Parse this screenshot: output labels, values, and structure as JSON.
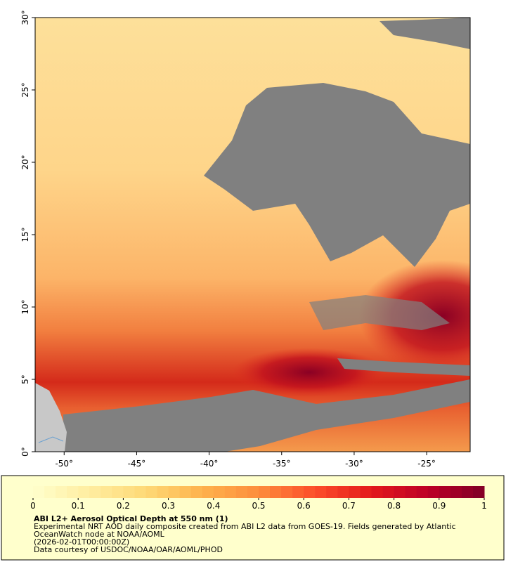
{
  "map": {
    "lonlim": [
      -52,
      -22
    ],
    "latlim": [
      0,
      30
    ],
    "xticks": [
      {
        "value": -50,
        "label": "-50°"
      },
      {
        "value": -45,
        "label": "-45°"
      },
      {
        "value": -40,
        "label": "-40°"
      },
      {
        "value": -35,
        "label": "-35°"
      },
      {
        "value": -30,
        "label": "-30°"
      },
      {
        "value": -25,
        "label": "-25°"
      }
    ],
    "yticks": [
      {
        "value": 0,
        "label": "0°"
      },
      {
        "value": 5,
        "label": "5°"
      },
      {
        "value": 10,
        "label": "10°"
      },
      {
        "value": 15,
        "label": "15°"
      },
      {
        "value": 20,
        "label": "20°"
      },
      {
        "value": 25,
        "label": "25°"
      },
      {
        "value": 30,
        "label": "30°"
      }
    ]
  },
  "colorbar": {
    "lim": [
      0,
      1
    ],
    "ticks": [
      0,
      0.1,
      0.2,
      0.3,
      0.4,
      0.5,
      0.6,
      0.7,
      0.8,
      0.9,
      1
    ],
    "colors": [
      "#ffffcc",
      "#ffeda0",
      "#fed976",
      "#feb24c",
      "#fd8d3c",
      "#fc4e2a",
      "#e31a1c",
      "#bd0026",
      "#800026"
    ],
    "steps": 40
  },
  "caption": {
    "title": "ABI L2+ Aerosol Optical Depth at 550 nm (1)",
    "lines": [
      "Experimental NRT AOD daily composite created from ABI L2 data from GOES-19. Fields generated by Atlantic",
      "OceanWatch node at NOAA/AOML",
      "(2026-02-01T00:00:00Z)",
      "Data courtesy of USDOC/NOAA/OAR/AOML/PHOD"
    ]
  }
}
